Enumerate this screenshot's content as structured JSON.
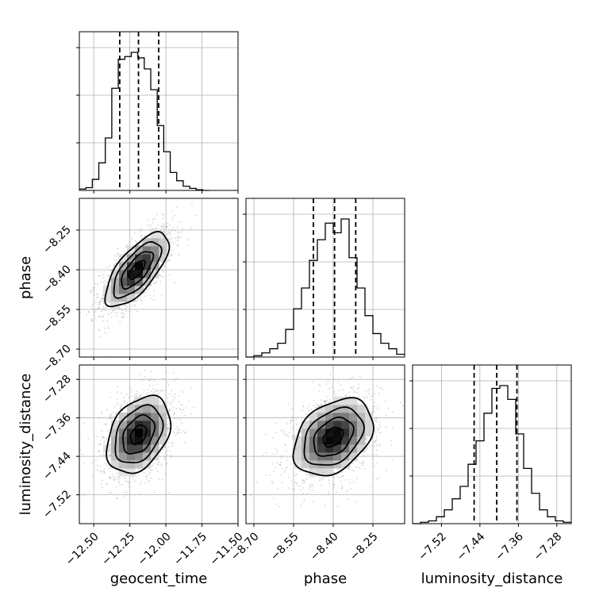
{
  "chart_data": {
    "type": "corner",
    "parameters": [
      "geocent_time",
      "phase",
      "luminosity_distance"
    ],
    "ranges": {
      "geocent_time": [
        -12.6,
        -11.5
      ],
      "phase": [
        -8.73,
        -8.13
      ],
      "luminosity_distance": [
        -7.58,
        -7.25
      ]
    },
    "ticks": {
      "geocent_time": [
        -12.5,
        -12.25,
        -12.0,
        -11.75,
        -11.5
      ],
      "phase": [
        -8.7,
        -8.55,
        -8.4,
        -8.25
      ],
      "luminosity_distance": [
        -7.52,
        -7.44,
        -7.36,
        -7.28
      ]
    },
    "tick_labels": {
      "geocent_time": [
        "−12.50",
        "−12.25",
        "−12.00",
        "−11.75",
        "−11.50"
      ],
      "phase": [
        "−8.70",
        "−8.55",
        "−8.40",
        "−8.25"
      ],
      "luminosity_distance": [
        "−7.52",
        "−7.44",
        "−7.36",
        "−7.28"
      ]
    },
    "quantiles": {
      "geocent_time": [
        -12.32,
        -12.19,
        -12.05
      ],
      "phase": [
        -8.475,
        -8.395,
        -8.315
      ],
      "luminosity_distance": [
        -7.452,
        -7.405,
        -7.363
      ]
    },
    "histograms": {
      "geocent_time": {
        "edges": [
          -12.6,
          -12.555,
          -12.51,
          -12.465,
          -12.42,
          -12.375,
          -12.33,
          -12.285,
          -12.24,
          -12.195,
          -12.15,
          -12.105,
          -12.06,
          -12.015,
          -11.97,
          -11.925,
          -11.88,
          -11.835,
          -11.79,
          -11.745,
          -11.7
        ],
        "counts": [
          0.01,
          0.02,
          0.08,
          0.2,
          0.38,
          0.74,
          0.95,
          0.97,
          1.0,
          0.96,
          0.88,
          0.73,
          0.47,
          0.28,
          0.13,
          0.07,
          0.03,
          0.015,
          0.005,
          0.0
        ]
      },
      "phase": {
        "edges": [
          -8.73,
          -8.7,
          -8.67,
          -8.64,
          -8.61,
          -8.58,
          -8.55,
          -8.52,
          -8.49,
          -8.46,
          -8.43,
          -8.4,
          -8.37,
          -8.34,
          -8.31,
          -8.28,
          -8.25,
          -8.22,
          -8.19,
          -8.16,
          -8.13
        ],
        "counts": [
          0.0,
          0.01,
          0.03,
          0.06,
          0.1,
          0.2,
          0.35,
          0.5,
          0.7,
          0.85,
          0.97,
          0.9,
          1.0,
          0.72,
          0.5,
          0.3,
          0.17,
          0.1,
          0.06,
          0.02
        ]
      },
      "luminosity_distance": {
        "edges": [
          -7.58,
          -7.5635,
          -7.547,
          -7.5305,
          -7.514,
          -7.4975,
          -7.481,
          -7.4645,
          -7.448,
          -7.4315,
          -7.415,
          -7.3985,
          -7.382,
          -7.3655,
          -7.349,
          -7.3325,
          -7.316,
          -7.2995,
          -7.283,
          -7.2665,
          -7.25
        ],
        "counts": [
          0.0,
          0.01,
          0.02,
          0.05,
          0.1,
          0.18,
          0.27,
          0.43,
          0.6,
          0.8,
          0.98,
          1.0,
          0.9,
          0.65,
          0.4,
          0.22,
          0.1,
          0.05,
          0.02,
          0.01
        ]
      }
    },
    "pairs": [
      {
        "x": "geocent_time",
        "y": "phase",
        "mean": [
          -12.2,
          -8.4
        ],
        "sd": [
          0.11,
          0.07
        ],
        "corr": 0.7
      },
      {
        "x": "geocent_time",
        "y": "luminosity_distance",
        "mean": [
          -12.19,
          -7.395
        ],
        "sd": [
          0.11,
          0.04
        ],
        "corr": 0.35
      },
      {
        "x": "phase",
        "y": "luminosity_distance",
        "mean": [
          -8.4,
          -7.4
        ],
        "sd": [
          0.075,
          0.04
        ],
        "corr": 0.35
      }
    ],
    "grid": true
  }
}
